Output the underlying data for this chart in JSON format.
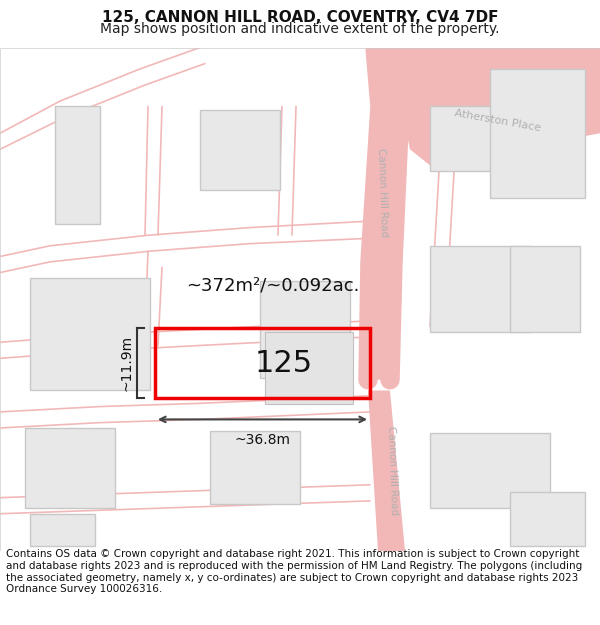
{
  "title_line1": "125, CANNON HILL ROAD, COVENTRY, CV4 7DF",
  "title_line2": "Map shows position and indicative extent of the property.",
  "footer_text": "Contains OS data © Crown copyright and database right 2021. This information is subject to Crown copyright and database rights 2023 and is reproduced with the permission of HM Land Registry. The polygons (including the associated geometry, namely x, y co-ordinates) are subject to Crown copyright and database rights 2023 Ordnance Survey 100026316.",
  "map_bg": "#ffffff",
  "road_color": "#f2b8b8",
  "building_fill": "#e8e8e8",
  "building_outline": "#c8c8c8",
  "plot_rect_color": "#ee0000",
  "plot_label": "125",
  "area_label": "~372m²/~0.092ac.",
  "width_label": "~36.8m",
  "height_label": "~11.9m",
  "street_label_upper": "Cannon Hill Road",
  "street_label_lower": "Cannon Hill Road",
  "street_label_atherston": "Atherston Place",
  "title_fontsize": 11,
  "subtitle_fontsize": 10,
  "footer_fontsize": 7.5
}
